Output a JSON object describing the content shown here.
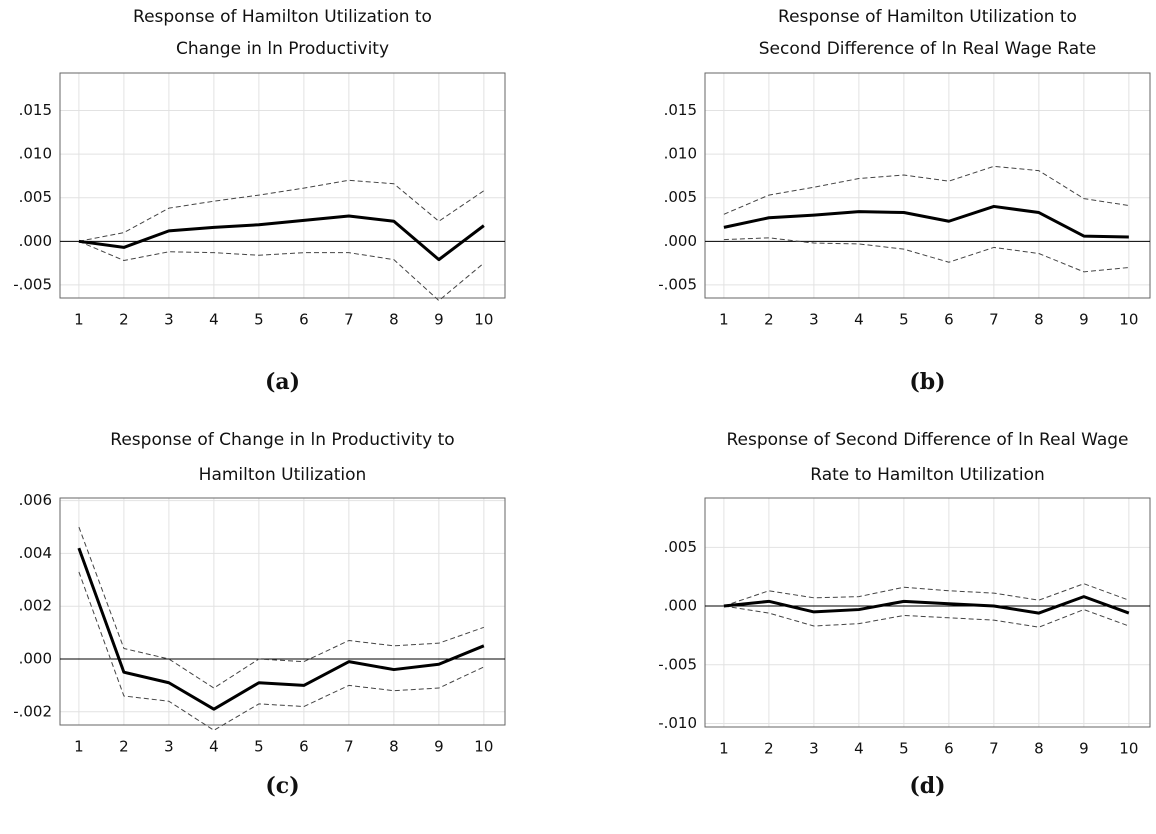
{
  "chart_data": [
    {
      "type": "line",
      "title": [
        "Response of Hamilton Utilization to",
        "Change in ln Productivity"
      ],
      "caption": "(a)",
      "x": [
        1,
        2,
        3,
        4,
        5,
        6,
        7,
        8,
        9,
        10
      ],
      "xlim": [
        0.58,
        10.47
      ],
      "xticks": [
        1,
        2,
        3,
        4,
        5,
        6,
        7,
        8,
        9,
        10
      ],
      "ylim": [
        -0.0065,
        0.0193
      ],
      "yticks": [
        {
          "value": -0.005,
          "label": "-.005"
        },
        {
          "value": 0,
          "label": ".000"
        },
        {
          "value": 0.005,
          "label": ".005"
        },
        {
          "value": 0.01,
          "label": ".010"
        },
        {
          "value": 0.015,
          "label": ".015"
        }
      ],
      "grid": true,
      "zero_line": true,
      "series": [
        {
          "color": "#000000",
          "width": 3,
          "dashed": false,
          "values": [
            0,
            -0.0007,
            0.0012,
            0.0016,
            0.0019,
            0.0024,
            0.0029,
            0.0023,
            -0.0021,
            0.0018
          ]
        },
        {
          "color": "#444444",
          "width": 1,
          "dashed": true,
          "values": [
            0,
            0.001,
            0.0038,
            0.0046,
            0.0053,
            0.0061,
            0.007,
            0.0066,
            0.0023,
            0.0058
          ]
        },
        {
          "color": "#444444",
          "width": 1,
          "dashed": true,
          "values": [
            0,
            -0.0022,
            -0.0012,
            -0.0013,
            -0.0016,
            -0.0013,
            -0.0013,
            -0.0021,
            -0.0068,
            -0.0025
          ]
        }
      ]
    },
    {
      "type": "line",
      "title": [
        "Response of Hamilton Utilization to",
        "Second Difference of ln Real Wage Rate"
      ],
      "caption": "(b)",
      "x": [
        1,
        2,
        3,
        4,
        5,
        6,
        7,
        8,
        9,
        10
      ],
      "xlim": [
        0.58,
        10.47
      ],
      "xticks": [
        1,
        2,
        3,
        4,
        5,
        6,
        7,
        8,
        9,
        10
      ],
      "ylim": [
        -0.0065,
        0.0193
      ],
      "yticks": [
        {
          "value": -0.005,
          "label": "-.005"
        },
        {
          "value": 0,
          "label": ".000"
        },
        {
          "value": 0.005,
          "label": ".005"
        },
        {
          "value": 0.01,
          "label": ".010"
        },
        {
          "value": 0.015,
          "label": ".015"
        }
      ],
      "grid": true,
      "zero_line": true,
      "series": [
        {
          "color": "#000000",
          "width": 3,
          "dashed": false,
          "values": [
            0.0016,
            0.0027,
            0.003,
            0.0034,
            0.0033,
            0.0023,
            0.004,
            0.0033,
            0.0006,
            0.0005
          ]
        },
        {
          "color": "#444444",
          "width": 1,
          "dashed": true,
          "values": [
            0.0031,
            0.0053,
            0.0062,
            0.0072,
            0.0076,
            0.0069,
            0.0086,
            0.0081,
            0.0049,
            0.0041
          ]
        },
        {
          "color": "#444444",
          "width": 1,
          "dashed": true,
          "values": [
            0.0002,
            0.0004,
            -0.0002,
            -0.0003,
            -0.0009,
            -0.0024,
            -0.0007,
            -0.0014,
            -0.0035,
            -0.003
          ]
        }
      ]
    },
    {
      "type": "line",
      "title": [
        "Response of Change in ln Productivity to",
        "Hamilton Utilization"
      ],
      "caption": "(c)",
      "x": [
        1,
        2,
        3,
        4,
        5,
        6,
        7,
        8,
        9,
        10
      ],
      "xlim": [
        0.58,
        10.47
      ],
      "xticks": [
        1,
        2,
        3,
        4,
        5,
        6,
        7,
        8,
        9,
        10
      ],
      "ylim": [
        -0.0025,
        0.0061
      ],
      "yticks": [
        {
          "value": -0.002,
          "label": "-.002"
        },
        {
          "value": 0,
          "label": ".000"
        },
        {
          "value": 0.002,
          "label": ".002"
        },
        {
          "value": 0.004,
          "label": ".004"
        },
        {
          "value": 0.006,
          "label": ".006"
        }
      ],
      "grid": true,
      "zero_line": true,
      "series": [
        {
          "color": "#000000",
          "width": 3,
          "dashed": false,
          "values": [
            0.0042,
            -0.0005,
            -0.0009,
            -0.0019,
            -0.0009,
            -0.001,
            -0.0001,
            -0.0004,
            -0.0002,
            0.0005
          ]
        },
        {
          "color": "#444444",
          "width": 1,
          "dashed": true,
          "values": [
            0.005,
            0.0004,
            0,
            -0.0011,
            0,
            -0.0001,
            0.0007,
            0.0005,
            0.0006,
            0.0012
          ]
        },
        {
          "color": "#444444",
          "width": 1,
          "dashed": true,
          "values": [
            0.0033,
            -0.0014,
            -0.0016,
            -0.0027,
            -0.0017,
            -0.0018,
            -0.001,
            -0.0012,
            -0.0011,
            -0.0003
          ]
        }
      ]
    },
    {
      "type": "line",
      "title": [
        "Response of Second Difference of ln Real Wage",
        "Rate to Hamilton Utilization"
      ],
      "caption": "(d)",
      "x": [
        1,
        2,
        3,
        4,
        5,
        6,
        7,
        8,
        9,
        10
      ],
      "xlim": [
        0.58,
        10.47
      ],
      "xticks": [
        1,
        2,
        3,
        4,
        5,
        6,
        7,
        8,
        9,
        10
      ],
      "ylim": [
        -0.0103,
        0.0092
      ],
      "yticks": [
        {
          "value": -0.01,
          "label": "-.010"
        },
        {
          "value": -0.005,
          "label": "-.005"
        },
        {
          "value": 0,
          "label": ".000"
        },
        {
          "value": 0.005,
          "label": ".005"
        }
      ],
      "grid": true,
      "zero_line": true,
      "series": [
        {
          "color": "#000000",
          "width": 3,
          "dashed": false,
          "values": [
            0,
            0.0004,
            -0.0005,
            -0.0003,
            0.0004,
            0.0002,
            0,
            -0.0006,
            0.0008,
            -0.0006
          ]
        },
        {
          "color": "#444444",
          "width": 1,
          "dashed": true,
          "values": [
            0,
            0.0013,
            0.0007,
            0.0008,
            0.0016,
            0.0013,
            0.0011,
            0.0005,
            0.0019,
            0.0005
          ]
        },
        {
          "color": "#444444",
          "width": 1,
          "dashed": true,
          "values": [
            0,
            -0.0006,
            -0.0017,
            -0.0015,
            -0.0008,
            -0.001,
            -0.0012,
            -0.0018,
            -0.0003,
            -0.0017
          ]
        }
      ]
    }
  ]
}
